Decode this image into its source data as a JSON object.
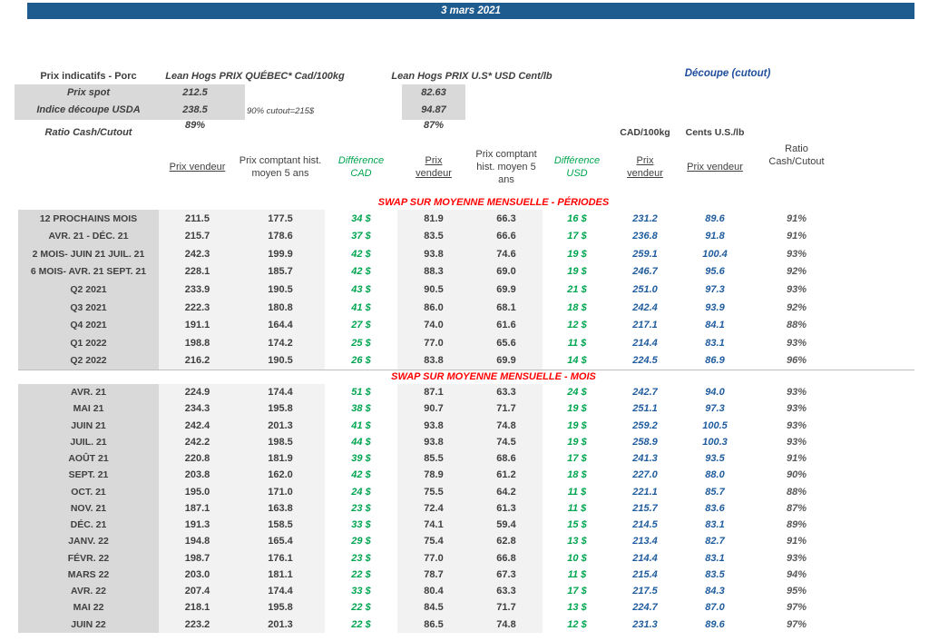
{
  "banner": {
    "date": "3 mars 2021"
  },
  "header": {
    "title": "Prix indicatifs - Porc",
    "quebec_title": "Lean Hogs PRIX QUÉBEC* Cad/100kg",
    "us_title": "Lean Hogs PRIX U.S* USD Cent/lb",
    "cutout_title": "Découpe (cutout)",
    "spot_label": "Prix spot",
    "spot_cad": "212.5",
    "spot_usd": "82.63",
    "usda_label": "Indice découpe USDA",
    "usda_cad": "238.5",
    "usda_usd": "94.87",
    "cutout_note": "90% cutout=215$",
    "ratio_label": "Ratio Cash/Cutout",
    "ratio_cad": "89%",
    "ratio_usd": "87%",
    "unit_cad": "CAD/100kg",
    "unit_us": "Cents U.S./lb"
  },
  "columns": {
    "prix_vendeur": "Prix vendeur",
    "prix_comptant": "Prix comptant hist. moyen 5 ans",
    "diff_cad": "Différence CAD",
    "diff_usd": "Différence USD",
    "ratio": "Ratio Cash/Cutout"
  },
  "colors": {
    "banner_blue": "#1e5b8e",
    "cutout_blue": "#1f5c9e",
    "diff_green": "#00a550",
    "section_red": "#ff0000",
    "label_gray_bg": "#d9d9d9",
    "numeric_gray_bg": "#f2f2f2"
  },
  "sections": [
    {
      "title": "SWAP SUR MOYENNE MENSUELLE - PÉRIODES",
      "rows": [
        [
          "12 PROCHAINS MOIS",
          "211.5",
          "177.5",
          "34 $",
          "81.9",
          "66.3",
          "16 $",
          "231.2",
          "89.6",
          "91%"
        ],
        [
          "AVR. 21 -  DÉC. 21",
          "215.7",
          "178.6",
          "37 $",
          "83.5",
          "66.6",
          "17 $",
          "236.8",
          "91.8",
          "91%"
        ],
        [
          "2 MOIS- JUIN 21 JUIL. 21",
          "242.3",
          "199.9",
          "42 $",
          "93.8",
          "74.6",
          "19 $",
          "259.1",
          "100.4",
          "93%"
        ],
        [
          "6 MOIS- AVR. 21 SEPT. 21",
          "228.1",
          "185.7",
          "42 $",
          "88.3",
          "69.0",
          "19 $",
          "246.7",
          "95.6",
          "92%"
        ],
        [
          "Q2 2021",
          "233.9",
          "190.5",
          "43 $",
          "90.5",
          "69.9",
          "21 $",
          "251.0",
          "97.3",
          "93%"
        ],
        [
          "Q3 2021",
          "222.3",
          "180.8",
          "41 $",
          "86.0",
          "68.1",
          "18 $",
          "242.4",
          "93.9",
          "92%"
        ],
        [
          "Q4 2021",
          "191.1",
          "164.4",
          "27 $",
          "74.0",
          "61.6",
          "12 $",
          "217.1",
          "84.1",
          "88%"
        ],
        [
          "Q1 2022",
          "198.8",
          "174.2",
          "25 $",
          "77.0",
          "65.6",
          "11 $",
          "214.4",
          "83.1",
          "93%"
        ],
        [
          "Q2 2022",
          "216.2",
          "190.5",
          "26 $",
          "83.8",
          "69.9",
          "14 $",
          "224.5",
          "86.9",
          "96%"
        ]
      ]
    },
    {
      "title": "SWAP SUR MOYENNE MENSUELLE - MOIS",
      "rows": [
        [
          "AVR. 21",
          "224.9",
          "174.4",
          "51 $",
          "87.1",
          "63.3",
          "24 $",
          "242.7",
          "94.0",
          "93%"
        ],
        [
          "MAI 21",
          "234.3",
          "195.8",
          "38 $",
          "90.7",
          "71.7",
          "19 $",
          "251.1",
          "97.3",
          "93%"
        ],
        [
          "JUIN 21",
          "242.4",
          "201.3",
          "41 $",
          "93.8",
          "74.8",
          "19 $",
          "259.2",
          "100.5",
          "93%"
        ],
        [
          "JUIL. 21",
          "242.2",
          "198.5",
          "44 $",
          "93.8",
          "74.5",
          "19 $",
          "258.9",
          "100.3",
          "93%"
        ],
        [
          "AOÛT 21",
          "220.8",
          "181.9",
          "39 $",
          "85.5",
          "68.6",
          "17 $",
          "241.3",
          "93.5",
          "91%"
        ],
        [
          "SEPT. 21",
          "203.8",
          "162.0",
          "42 $",
          "78.9",
          "61.2",
          "18 $",
          "227.0",
          "88.0",
          "90%"
        ],
        [
          "OCT. 21",
          "195.0",
          "171.0",
          "24 $",
          "75.5",
          "64.2",
          "11 $",
          "221.1",
          "85.7",
          "88%"
        ],
        [
          "NOV. 21",
          "187.1",
          "163.8",
          "23 $",
          "72.4",
          "61.3",
          "11 $",
          "215.7",
          "83.6",
          "87%"
        ],
        [
          "DÉC. 21",
          "191.3",
          "158.5",
          "33 $",
          "74.1",
          "59.4",
          "15 $",
          "214.5",
          "83.1",
          "89%"
        ],
        [
          "JANV. 22",
          "194.8",
          "165.4",
          "29 $",
          "75.4",
          "62.8",
          "13 $",
          "213.4",
          "82.7",
          "91%"
        ],
        [
          "FÉVR. 22",
          "198.7",
          "176.1",
          "23 $",
          "77.0",
          "66.8",
          "10 $",
          "214.4",
          "83.1",
          "93%"
        ],
        [
          "MARS 22",
          "203.0",
          "181.1",
          "22 $",
          "78.7",
          "67.3",
          "11 $",
          "215.4",
          "83.5",
          "94%"
        ],
        [
          "AVR. 22",
          "207.4",
          "174.4",
          "33 $",
          "80.4",
          "63.3",
          "17 $",
          "217.5",
          "84.3",
          "95%"
        ],
        [
          "MAI 22",
          "218.1",
          "195.8",
          "22 $",
          "84.5",
          "71.7",
          "13 $",
          "224.7",
          "87.0",
          "97%"
        ],
        [
          "JUIN 22",
          "223.2",
          "201.3",
          "22 $",
          "86.5",
          "74.8",
          "12 $",
          "231.3",
          "89.6",
          "97%"
        ]
      ]
    }
  ],
  "cell_names": [
    "row-label",
    "cad-prix-vendeur",
    "cad-prix-comptant",
    "difference-cad",
    "usd-prix-vendeur",
    "usd-prix-comptant",
    "difference-usd",
    "cutout-cad-value",
    "cutout-us-value",
    "ratio-cash-cutout"
  ]
}
